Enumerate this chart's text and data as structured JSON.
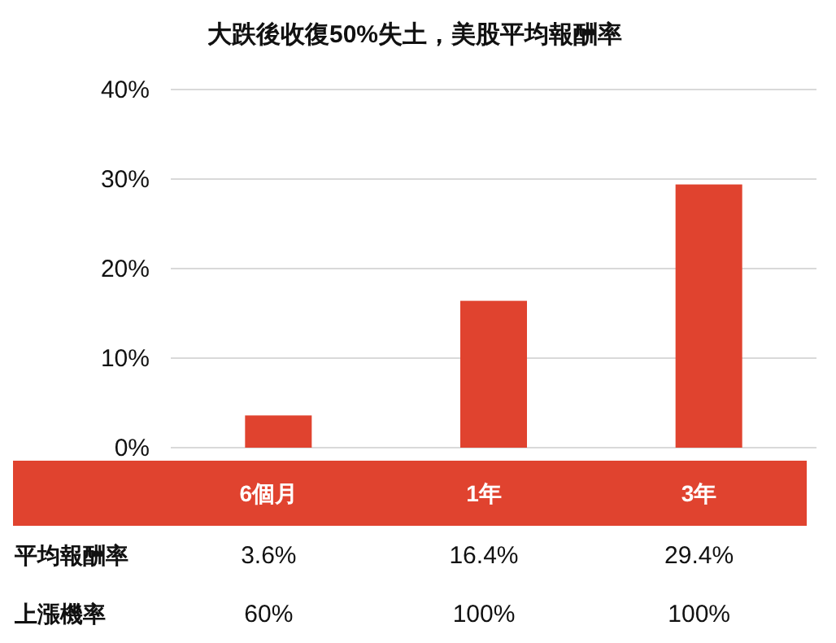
{
  "chart_data": {
    "type": "bar",
    "title": "大跌後收復50%失土，美股平均報酬率",
    "categories": [
      "6個月",
      "1年",
      "3年"
    ],
    "values": [
      3.6,
      16.4,
      29.4
    ],
    "color": "#e0432f",
    "value_labels": [
      "3.6%",
      "16.4%",
      "29.4%"
    ],
    "ylim": [
      0,
      40
    ],
    "yticks": [
      {
        "value": 0,
        "label": "0%"
      },
      {
        "value": 10,
        "label": "10%"
      },
      {
        "value": 20,
        "label": "20%"
      },
      {
        "value": 30,
        "label": "30%"
      },
      {
        "value": 40,
        "label": "40%"
      }
    ],
    "grid": "y",
    "annotations": [
      "平均報酬率",
      "上漲機率",
      "60%",
      "100%",
      "100%"
    ]
  }
}
